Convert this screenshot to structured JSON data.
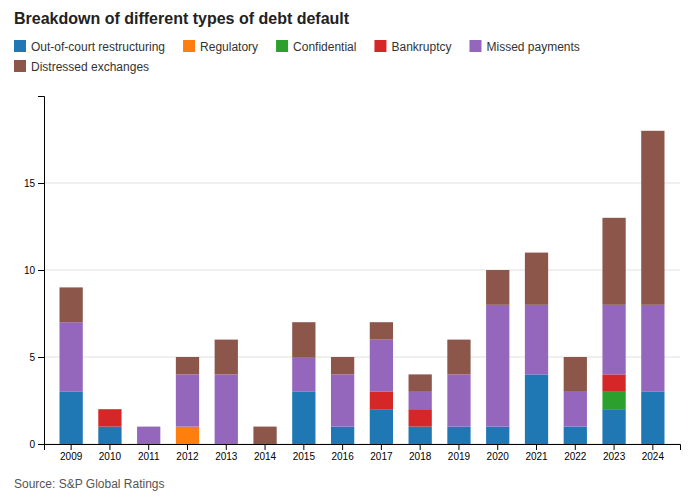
{
  "chart_data": {
    "type": "bar",
    "title": "Breakdown of different types of debt default",
    "source": "Source: S&P Global Ratings",
    "categories": [
      "2009",
      "2010",
      "2011",
      "2012",
      "2013",
      "2014",
      "2015",
      "2016",
      "2017",
      "2018",
      "2019",
      "2020",
      "2021",
      "2022",
      "2023",
      "2024"
    ],
    "series": [
      {
        "name": "Out-of-court restructuring",
        "values": [
          3,
          1,
          0,
          0,
          0,
          0,
          3,
          1,
          2,
          1,
          1,
          1,
          4,
          1,
          2,
          3
        ]
      },
      {
        "name": "Regulatory",
        "values": [
          0,
          0,
          0,
          1,
          0,
          0,
          0,
          0,
          0,
          0,
          0,
          0,
          0,
          0,
          0,
          0
        ]
      },
      {
        "name": "Confidential",
        "values": [
          0,
          0,
          0,
          0,
          0,
          0,
          0,
          0,
          0,
          0,
          0,
          0,
          0,
          0,
          1,
          0
        ]
      },
      {
        "name": "Bankruptcy",
        "values": [
          0,
          1,
          0,
          0,
          0,
          0,
          0,
          0,
          1,
          1,
          0,
          0,
          0,
          0,
          1,
          0
        ]
      },
      {
        "name": "Missed payments",
        "values": [
          4,
          0,
          1,
          3,
          4,
          0,
          2,
          3,
          3,
          1,
          3,
          7,
          4,
          2,
          4,
          5
        ]
      },
      {
        "name": "Distressed exchanges",
        "values": [
          2,
          0,
          0,
          1,
          2,
          1,
          2,
          1,
          1,
          1,
          2,
          2,
          3,
          2,
          5,
          10
        ]
      }
    ],
    "stacked": true,
    "ylim": [
      0,
      20
    ],
    "yticks": [
      0,
      5,
      10,
      15
    ],
    "grid": true,
    "legend": "top"
  }
}
